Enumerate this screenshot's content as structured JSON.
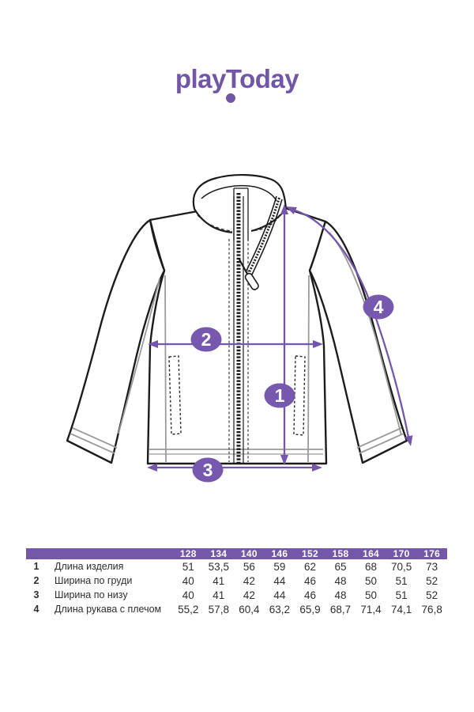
{
  "page": {
    "background": "#ffffff"
  },
  "brand": {
    "logo_text": "playToday"
  },
  "colors": {
    "logo_purple": "#7156A8",
    "accent_purple": "#7456AC",
    "marker_purple": "#7659AE",
    "table_header_purple": "#7557A9",
    "drawing_line": "#1c1c1c",
    "seam_gray": "#9b9b9b",
    "text_dark": "#2e2e2e"
  },
  "diagram": {
    "subject": "zip-up-jacket-technical-sketch",
    "markers": [
      "1",
      "2",
      "3",
      "4"
    ]
  },
  "chart_data": {
    "type": "table",
    "columns": [
      "",
      "",
      "128",
      "134",
      "140",
      "146",
      "152",
      "158",
      "164",
      "170",
      "176"
    ],
    "rows": [
      [
        "1",
        "Длина изделия",
        "51",
        "53,5",
        "56",
        "59",
        "62",
        "65",
        "68",
        "70,5",
        "73"
      ],
      [
        "2",
        "Ширина по груди",
        "40",
        "41",
        "42",
        "44",
        "46",
        "48",
        "50",
        "51",
        "52"
      ],
      [
        "3",
        "Ширина по низу",
        "40",
        "41",
        "42",
        "44",
        "46",
        "48",
        "50",
        "51",
        "52"
      ],
      [
        "4",
        "Длина рукава с плечом",
        "55,2",
        "57,8",
        "60,4",
        "63,2",
        "65,9",
        "68,7",
        "71,4",
        "74,1",
        "76,8"
      ]
    ]
  }
}
